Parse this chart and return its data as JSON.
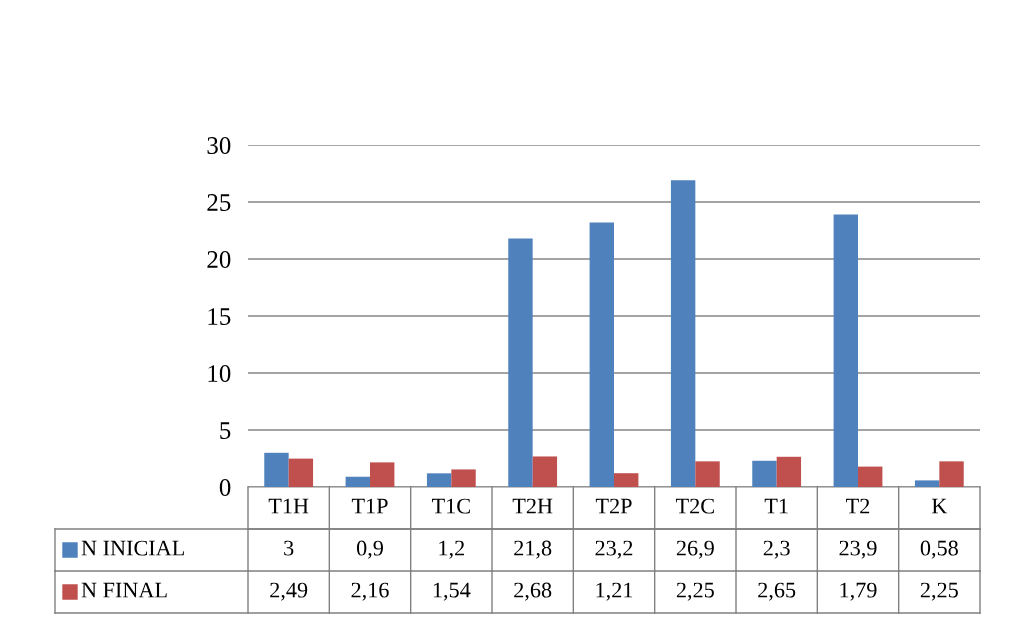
{
  "chart_data": {
    "type": "bar",
    "categories": [
      "T1H",
      "T1P",
      "T1C",
      "T2H",
      "T2P",
      "T2C",
      "T1",
      "T2",
      "K"
    ],
    "series": [
      {
        "name": "N INICIAL",
        "color": "#4f81bd",
        "values": [
          3,
          0.9,
          1.2,
          21.8,
          23.2,
          26.9,
          2.3,
          23.9,
          0.58
        ],
        "value_labels": [
          "3",
          "0,9",
          "1,2",
          "21,8",
          "23,2",
          "26,9",
          "2,3",
          "23,9",
          "0,58"
        ]
      },
      {
        "name": "N FINAL",
        "color": "#c0504d",
        "values": [
          2.49,
          2.16,
          1.54,
          2.68,
          1.21,
          2.25,
          2.65,
          1.79,
          2.25
        ],
        "value_labels": [
          "2,49",
          "2,16",
          "1,54",
          "2,68",
          "1,21",
          "2,25",
          "2,65",
          "1,79",
          "2,25"
        ]
      }
    ],
    "ylim": [
      0,
      30
    ],
    "yticks": [
      0,
      5,
      10,
      15,
      20,
      25,
      30
    ],
    "grid": "y",
    "legend": "bottom"
  }
}
